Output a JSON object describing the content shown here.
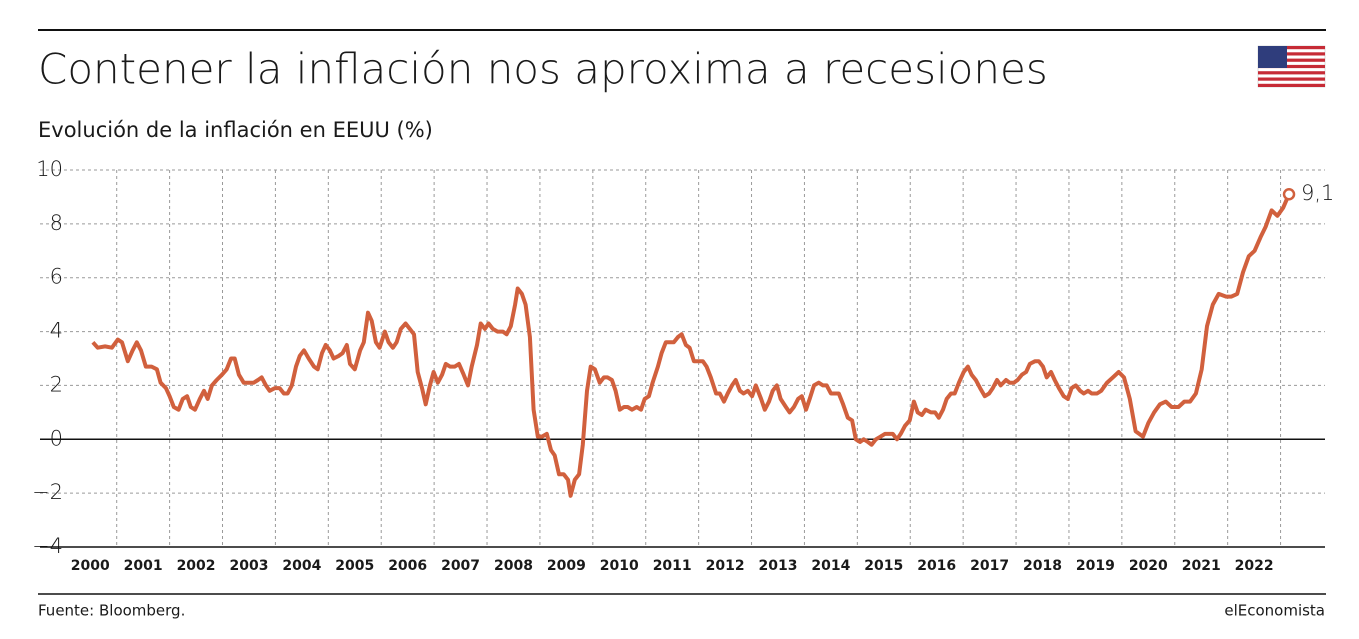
{
  "chart_data": {
    "type": "line",
    "title": "Contener la inflación nos aproxima a recesiones",
    "subtitle": "Evolución de la inflación en EEUU (%)",
    "source": "Fuente: Bloomberg.",
    "brand": "elEconomista",
    "annotation": "9,1",
    "color": "#d1603d",
    "grid": true,
    "xlim": [
      1999.55,
      2023.84
    ],
    "ylim": [
      -4,
      10
    ],
    "yticks": [
      {
        "value": -4,
        "label": "−4"
      },
      {
        "value": -2,
        "label": "−2"
      },
      0,
      2,
      4,
      6,
      8,
      10
    ],
    "xticks": [
      {
        "value": 2000.5,
        "label": "2000"
      },
      {
        "value": 2001.5,
        "label": "2001"
      },
      {
        "value": 2002.5,
        "label": "2002"
      },
      {
        "value": 2003.5,
        "label": "2003"
      },
      {
        "value": 2004.5,
        "label": "2004"
      },
      {
        "value": 2005.5,
        "label": "2005"
      },
      {
        "value": 2006.5,
        "label": "2006"
      },
      {
        "value": 2007.5,
        "label": "2007"
      },
      {
        "value": 2008.5,
        "label": "2008"
      },
      {
        "value": 2009.5,
        "label": "2009"
      },
      {
        "value": 2010.5,
        "label": "2010"
      },
      {
        "value": 2011.5,
        "label": "2011"
      },
      {
        "value": 2012.5,
        "label": "2012"
      },
      {
        "value": 2013.5,
        "label": "2013"
      },
      {
        "value": 2014.5,
        "label": "2014"
      },
      {
        "value": 2015.5,
        "label": "2015"
      },
      {
        "value": 2016.5,
        "label": "2016"
      },
      {
        "value": 2017.5,
        "label": "2017"
      },
      {
        "value": 2018.5,
        "label": "2018"
      },
      {
        "value": 2019.5,
        "label": "2019"
      },
      {
        "value": 2020.5,
        "label": "2020"
      },
      {
        "value": 2021.5,
        "label": "2021"
      },
      {
        "value": 2022.5,
        "label": "2022"
      }
    ],
    "x": [
      2000.55,
      2000.64,
      2000.78,
      2000.91,
      2001.02,
      2001.1,
      2001.21,
      2001.3,
      2001.38,
      2001.46,
      2001.55,
      2001.66,
      2001.76,
      2001.83,
      2001.93,
      2002.0,
      2002.08,
      2002.17,
      2002.25,
      2002.33,
      2002.4,
      2002.48,
      2002.57,
      2002.65,
      2002.72,
      2002.8,
      2002.89,
      2002.99,
      2003.08,
      2003.16,
      2003.23,
      2003.31,
      2003.4,
      2003.5,
      2003.59,
      2003.67,
      2003.74,
      2003.82,
      2003.89,
      2003.99,
      2004.08,
      2004.16,
      2004.23,
      2004.31,
      2004.39,
      2004.46,
      2004.54,
      2004.63,
      2004.73,
      2004.8,
      2004.88,
      2004.95,
      2005.03,
      2005.1,
      2005.2,
      2005.27,
      2005.35,
      2005.41,
      2005.5,
      2005.6,
      2005.67,
      2005.75,
      2005.82,
      2005.9,
      2005.97,
      2006.07,
      2006.14,
      2006.22,
      2006.29,
      2006.37,
      2006.46,
      2006.54,
      2006.62,
      2006.69,
      2006.77,
      2006.84,
      2006.92,
      2006.99,
      2007.07,
      2007.15,
      2007.22,
      2007.3,
      2007.39,
      2007.47,
      2007.56,
      2007.64,
      2007.71,
      2007.81,
      2007.88,
      2007.96,
      2008.03,
      2008.11,
      2008.2,
      2008.3,
      2008.37,
      2008.45,
      2008.53,
      2008.58,
      2008.66,
      2008.73,
      2008.81,
      2008.88,
      2008.96,
      2009.04,
      2009.13,
      2009.21,
      2009.28,
      2009.36,
      2009.45,
      2009.53,
      2009.58,
      2009.66,
      2009.74,
      2009.81,
      2009.89,
      2009.96,
      2010.04,
      2010.13,
      2010.21,
      2010.28,
      2010.36,
      2010.43,
      2010.51,
      2010.59,
      2010.66,
      2010.74,
      2010.83,
      2010.91,
      2010.98,
      2011.06,
      2011.13,
      2011.23,
      2011.3,
      2011.38,
      2011.46,
      2011.53,
      2011.61,
      2011.68,
      2011.76,
      2011.83,
      2011.91,
      2012.0,
      2012.08,
      2012.15,
      2012.23,
      2012.33,
      2012.4,
      2012.48,
      2012.55,
      2012.63,
      2012.7,
      2012.78,
      2012.85,
      2012.93,
      2013.01,
      2013.08,
      2013.18,
      2013.25,
      2013.33,
      2013.4,
      2013.48,
      2013.55,
      2013.65,
      2013.72,
      2013.8,
      2013.88,
      2013.95,
      2014.03,
      2014.1,
      2014.18,
      2014.27,
      2014.35,
      2014.42,
      2014.5,
      2014.57,
      2014.65,
      2014.73,
      2014.82,
      2014.9,
      2014.97,
      2015.05,
      2015.12,
      2015.2,
      2015.27,
      2015.35,
      2015.44,
      2015.52,
      2015.6,
      2015.67,
      2015.75,
      2015.82,
      2015.9,
      2015.99,
      2016.07,
      2016.14,
      2016.22,
      2016.29,
      2016.39,
      2016.47,
      2016.54,
      2016.62,
      2016.69,
      2016.77,
      2016.84,
      2016.92,
      2017.01,
      2017.09,
      2017.16,
      2017.24,
      2017.32,
      2017.41,
      2017.49,
      2017.56,
      2017.64,
      2017.71,
      2017.81,
      2017.88,
      2017.96,
      2018.03,
      2018.11,
      2018.19,
      2018.26,
      2018.36,
      2018.43,
      2018.51,
      2018.58,
      2018.66,
      2018.73,
      2018.81,
      2018.9,
      2018.98,
      2019.05,
      2019.13,
      2019.21,
      2019.28,
      2019.36,
      2019.43,
      2019.53,
      2019.61,
      2019.72,
      2019.83,
      2019.94,
      2020.04,
      2020.15,
      2020.26,
      2020.4,
      2020.5,
      2020.61,
      2020.72,
      2020.83,
      2020.94,
      2021.07,
      2021.18,
      2021.29,
      2021.4,
      2021.51,
      2021.61,
      2021.72,
      2021.83,
      2021.97,
      2022.07,
      2022.18,
      2022.29,
      2022.4,
      2022.51,
      2022.62,
      2022.72,
      2022.83,
      2022.94,
      2023.05,
      2023.16
    ],
    "values": [
      3.6,
      3.4,
      3.45,
      3.4,
      3.7,
      3.6,
      2.9,
      3.3,
      3.6,
      3.3,
      2.7,
      2.7,
      2.6,
      2.1,
      1.9,
      1.6,
      1.2,
      1.1,
      1.5,
      1.6,
      1.2,
      1.1,
      1.5,
      1.8,
      1.5,
      2.0,
      2.2,
      2.4,
      2.6,
      3.0,
      3.0,
      2.4,
      2.1,
      2.1,
      2.1,
      2.2,
      2.3,
      2.0,
      1.8,
      1.9,
      1.9,
      1.7,
      1.7,
      2.0,
      2.7,
      3.1,
      3.3,
      3.0,
      2.7,
      2.6,
      3.2,
      3.5,
      3.3,
      3.0,
      3.1,
      3.2,
      3.5,
      2.8,
      2.6,
      3.3,
      3.6,
      4.7,
      4.4,
      3.6,
      3.4,
      4.0,
      3.6,
      3.4,
      3.6,
      4.1,
      4.3,
      4.1,
      3.9,
      2.5,
      1.9,
      1.3,
      2.0,
      2.5,
      2.1,
      2.4,
      2.8,
      2.7,
      2.7,
      2.8,
      2.4,
      2.0,
      2.7,
      3.5,
      4.3,
      4.1,
      4.3,
      4.1,
      4.0,
      4.0,
      3.9,
      4.2,
      5.0,
      5.6,
      5.4,
      5.0,
      3.8,
      1.1,
      0.1,
      0.1,
      0.2,
      -0.4,
      -0.6,
      -1.3,
      -1.3,
      -1.5,
      -2.1,
      -1.5,
      -1.3,
      -0.2,
      1.8,
      2.7,
      2.6,
      2.1,
      2.3,
      2.3,
      2.2,
      1.8,
      1.1,
      1.2,
      1.2,
      1.1,
      1.2,
      1.1,
      1.5,
      1.6,
      2.1,
      2.7,
      3.2,
      3.6,
      3.6,
      3.6,
      3.8,
      3.9,
      3.5,
      3.4,
      2.9,
      2.9,
      2.9,
      2.7,
      2.3,
      1.7,
      1.7,
      1.4,
      1.7,
      2.0,
      2.2,
      1.8,
      1.7,
      1.8,
      1.6,
      2.0,
      1.5,
      1.1,
      1.4,
      1.8,
      2.0,
      1.5,
      1.2,
      1.0,
      1.2,
      1.5,
      1.6,
      1.1,
      1.5,
      2.0,
      2.1,
      2.0,
      2.0,
      1.7,
      1.7,
      1.7,
      1.3,
      0.8,
      0.7,
      0.0,
      -0.1,
      0.0,
      -0.1,
      -0.2,
      0.0,
      0.1,
      0.2,
      0.2,
      0.2,
      0.0,
      0.2,
      0.5,
      0.7,
      1.4,
      1.0,
      0.9,
      1.1,
      1.0,
      1.0,
      0.8,
      1.1,
      1.5,
      1.7,
      1.7,
      2.1,
      2.5,
      2.7,
      2.4,
      2.2,
      1.9,
      1.6,
      1.7,
      1.9,
      2.2,
      2.0,
      2.2,
      2.1,
      2.1,
      2.2,
      2.4,
      2.5,
      2.8,
      2.9,
      2.9,
      2.7,
      2.3,
      2.5,
      2.2,
      1.9,
      1.6,
      1.5,
      1.9,
      2.0,
      1.8,
      1.7,
      1.8,
      1.7,
      1.7,
      1.8,
      2.1,
      2.3,
      2.5,
      2.3,
      1.5,
      0.3,
      0.1,
      0.6,
      1.0,
      1.3,
      1.4,
      1.2,
      1.2,
      1.4,
      1.4,
      1.7,
      2.6,
      4.2,
      5.0,
      5.4,
      5.3,
      5.3,
      5.4,
      6.2,
      6.8,
      7.0,
      7.5,
      7.9,
      8.5,
      8.3,
      8.6,
      9.1
    ]
  }
}
